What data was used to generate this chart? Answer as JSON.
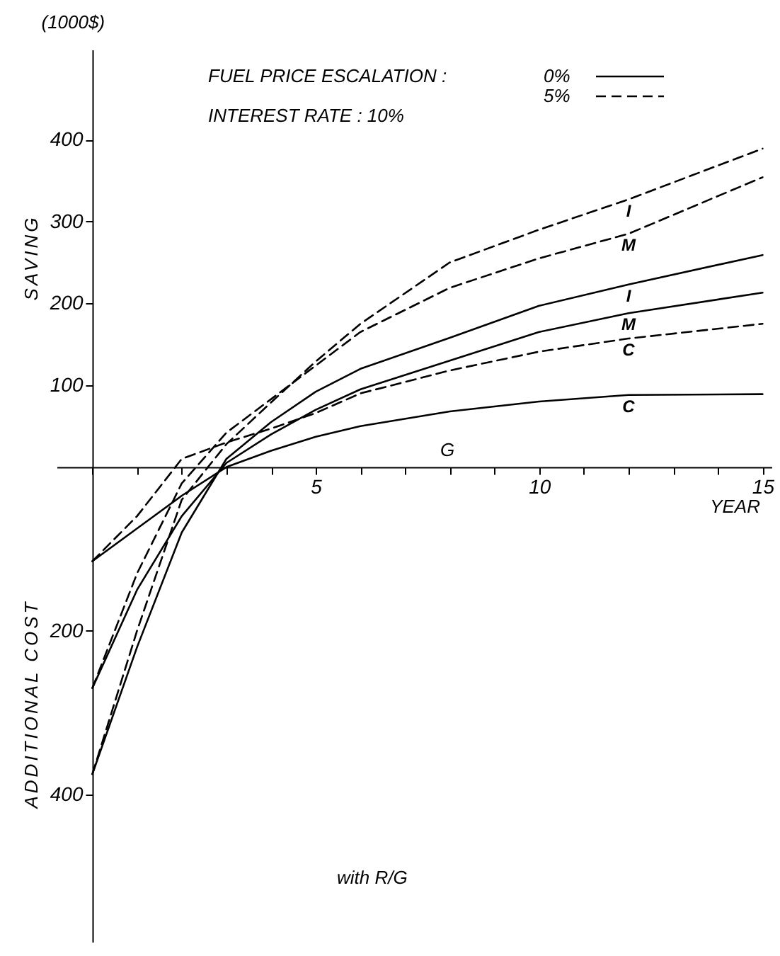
{
  "chart_data": {
    "type": "line",
    "legend_title": "FUEL PRICE ESCALATION :",
    "subtitle": "INTEREST RATE : 10%",
    "xlabel": "YEAR",
    "ylabel": "SAVING",
    "annotations": [
      "(1000$)",
      "0%",
      "5%",
      "ADDITIONAL COST",
      "with R/G",
      "G"
    ],
    "x": [
      0,
      1,
      2,
      3,
      4,
      5,
      6,
      8,
      10,
      12,
      15
    ],
    "series": [
      {
        "name": "I",
        "color": "#000000",
        "line_style": "solid",
        "values": [
          -375,
          -220,
          -80,
          10,
          55,
          92,
          120,
          158,
          197,
          223,
          259
        ]
      },
      {
        "name": "M",
        "color": "#000000",
        "line_style": "solid",
        "values": [
          -270,
          -150,
          -60,
          5,
          40,
          70,
          95,
          130,
          165,
          188,
          213
        ]
      },
      {
        "name": "C",
        "color": "#000000",
        "line_style": "solid",
        "values": [
          -115,
          -75,
          -35,
          0,
          20,
          37,
          50,
          68,
          80,
          88,
          89
        ]
      },
      {
        "name": "I",
        "color": "#000000",
        "line_style": "dashed",
        "values": [
          -375,
          -200,
          -40,
          28,
          79,
          129,
          175,
          250,
          290,
          327,
          389
        ]
      },
      {
        "name": "M",
        "color": "#000000",
        "line_style": "dashed",
        "values": [
          -270,
          -130,
          -20,
          42,
          83,
          124,
          165,
          219,
          255,
          285,
          354
        ]
      },
      {
        "name": "C",
        "color": "#000000",
        "line_style": "dashed",
        "values": [
          -115,
          -60,
          10,
          30,
          47,
          66,
          90,
          118,
          141,
          157,
          175
        ]
      }
    ],
    "xlim": [
      -0.8,
      15.2
    ],
    "xticks": [
      {
        "value": 0,
        "label": null
      },
      {
        "value": 1,
        "label": null
      },
      {
        "value": 2,
        "label": null
      },
      {
        "value": 3,
        "label": null
      },
      {
        "value": 4,
        "label": null
      },
      5,
      {
        "value": 6,
        "label": null
      },
      {
        "value": 7,
        "label": null
      },
      {
        "value": 8,
        "label": null
      },
      {
        "value": 9,
        "label": null
      },
      10,
      {
        "value": 11,
        "label": null
      },
      {
        "value": 12,
        "label": null
      },
      {
        "value": 13,
        "label": null
      },
      {
        "value": 14,
        "label": null
      },
      15
    ],
    "ylim": [
      -580,
      510
    ],
    "yticks": [
      {
        "value": -400,
        "label": "400"
      },
      {
        "value": -200,
        "label": "200"
      },
      100,
      200,
      300,
      400
    ],
    "grid": false,
    "marker": "none"
  }
}
